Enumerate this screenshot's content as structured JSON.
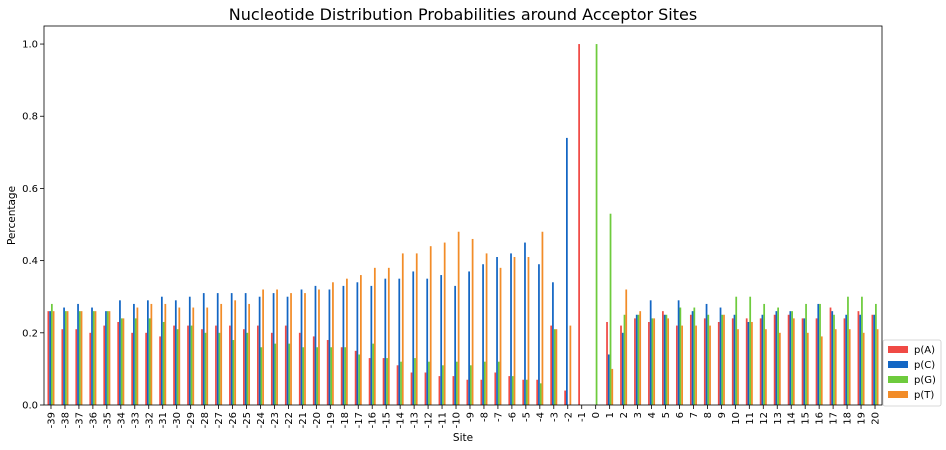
{
  "chart_data": {
    "type": "bar",
    "title": "Nucleotide Distribution Probabilities around Acceptor Sites",
    "xlabel": "Site",
    "ylabel": "Percentage",
    "ylim": [
      0,
      1.05
    ],
    "yticks": [
      "0.0",
      "0.2",
      "0.4",
      "0.6",
      "0.8",
      "1.0"
    ],
    "legend_position": "lower-right",
    "grid": false,
    "categories": [
      "-39",
      "-38",
      "-37",
      "-36",
      "-35",
      "-34",
      "-33",
      "-32",
      "-31",
      "-30",
      "-29",
      "-28",
      "-27",
      "-26",
      "-25",
      "-24",
      "-23",
      "-22",
      "-21",
      "-20",
      "-19",
      "-18",
      "-17",
      "-16",
      "-15",
      "-14",
      "-13",
      "-12",
      "-11",
      "-10",
      "-9",
      "-8",
      "-7",
      "-6",
      "-5",
      "-4",
      "-3",
      "-2",
      "-1",
      "0",
      "1",
      "2",
      "3",
      "4",
      "5",
      "6",
      "7",
      "8",
      "9",
      "10",
      "11",
      "12",
      "13",
      "14",
      "15",
      "16",
      "17",
      "18",
      "19",
      "20"
    ],
    "series": [
      {
        "name": "p(A)",
        "color": "#f04a45",
        "values": [
          0.26,
          0.21,
          0.21,
          0.2,
          0.22,
          0.23,
          0.2,
          0.2,
          0.19,
          0.22,
          0.22,
          0.21,
          0.22,
          0.22,
          0.21,
          0.22,
          0.2,
          0.22,
          0.2,
          0.19,
          0.18,
          0.16,
          0.15,
          0.13,
          0.13,
          0.11,
          0.09,
          0.09,
          0.08,
          0.08,
          0.07,
          0.07,
          0.09,
          0.08,
          0.07,
          0.07,
          0.22,
          0.04,
          1.0,
          0.0,
          0.23,
          0.22,
          0.24,
          0.23,
          0.26,
          0.22,
          0.25,
          0.24,
          0.23,
          0.24,
          0.24,
          0.24,
          0.25,
          0.25,
          0.24,
          0.24,
          0.27,
          0.24,
          0.26,
          0.25
        ]
      },
      {
        "name": "p(C)",
        "color": "#1366c4",
        "values": [
          0.26,
          0.27,
          0.28,
          0.27,
          0.26,
          0.29,
          0.28,
          0.29,
          0.3,
          0.29,
          0.3,
          0.31,
          0.31,
          0.31,
          0.31,
          0.3,
          0.31,
          0.3,
          0.32,
          0.33,
          0.32,
          0.33,
          0.34,
          0.33,
          0.35,
          0.35,
          0.37,
          0.35,
          0.36,
          0.33,
          0.37,
          0.39,
          0.41,
          0.42,
          0.45,
          0.39,
          0.34,
          0.74,
          0.0,
          0.0,
          0.14,
          0.2,
          0.25,
          0.29,
          0.25,
          0.29,
          0.26,
          0.28,
          0.27,
          0.25,
          0.23,
          0.25,
          0.26,
          0.26,
          0.24,
          0.28,
          0.26,
          0.25,
          0.25,
          0.25
        ]
      },
      {
        "name": "p(G)",
        "color": "#6ecb3d",
        "values": [
          0.28,
          0.26,
          0.26,
          0.26,
          0.26,
          0.24,
          0.24,
          0.24,
          0.23,
          0.21,
          0.22,
          0.2,
          0.2,
          0.18,
          0.2,
          0.16,
          0.17,
          0.17,
          0.16,
          0.16,
          0.16,
          0.16,
          0.14,
          0.17,
          0.13,
          0.12,
          0.13,
          0.12,
          0.11,
          0.12,
          0.11,
          0.12,
          0.12,
          0.08,
          0.07,
          0.06,
          0.21,
          0.0,
          0.0,
          1.0,
          0.53,
          0.25,
          0.25,
          0.24,
          0.25,
          0.27,
          0.27,
          0.25,
          0.25,
          0.3,
          0.3,
          0.28,
          0.27,
          0.26,
          0.28,
          0.28,
          0.25,
          0.3,
          0.3,
          0.28
        ]
      },
      {
        "name": "p(T)",
        "color": "#f28c28",
        "values": [
          0.26,
          0.26,
          0.26,
          0.26,
          0.26,
          0.24,
          0.27,
          0.28,
          0.28,
          0.27,
          0.27,
          0.27,
          0.28,
          0.29,
          0.28,
          0.32,
          0.32,
          0.31,
          0.31,
          0.32,
          0.34,
          0.35,
          0.36,
          0.38,
          0.38,
          0.42,
          0.42,
          0.44,
          0.45,
          0.48,
          0.46,
          0.42,
          0.38,
          0.41,
          0.41,
          0.48,
          0.21,
          0.22,
          0.0,
          0.0,
          0.1,
          0.32,
          0.26,
          0.24,
          0.24,
          0.22,
          0.22,
          0.22,
          0.25,
          0.21,
          0.23,
          0.21,
          0.2,
          0.24,
          0.2,
          0.19,
          0.21,
          0.21,
          0.2,
          0.21
        ]
      }
    ]
  }
}
